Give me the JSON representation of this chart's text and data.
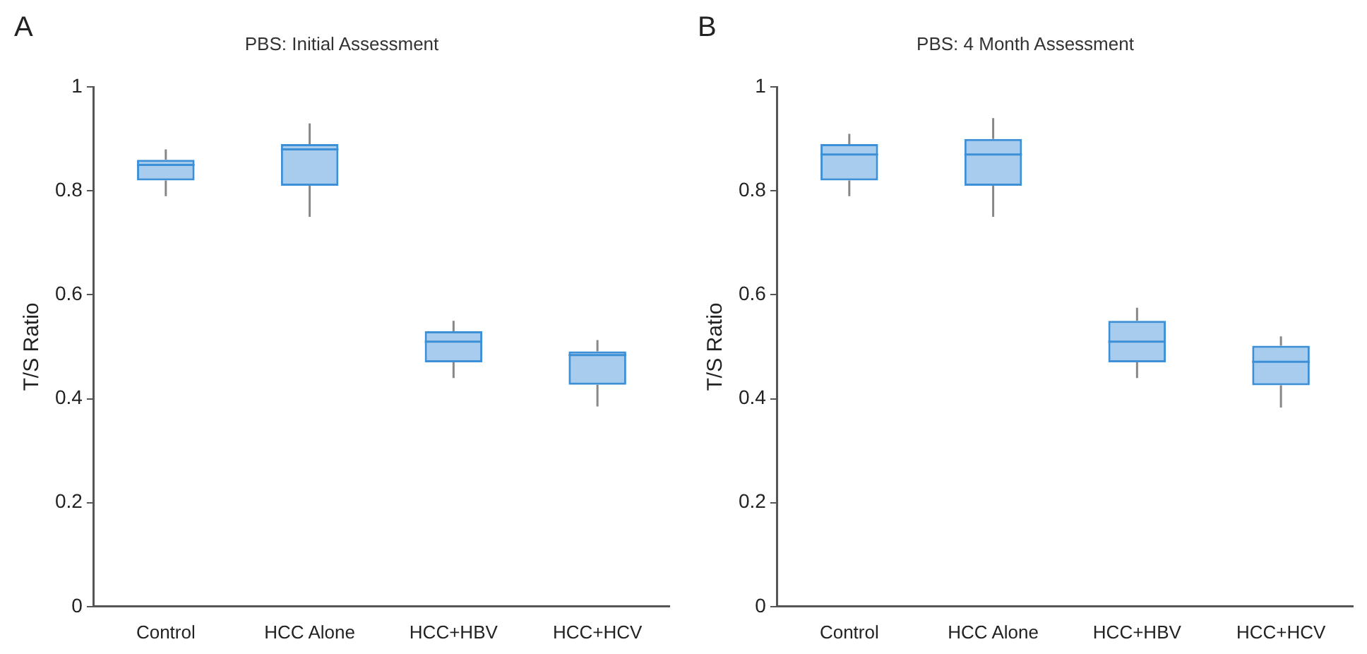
{
  "chart_data": [
    {
      "type": "box",
      "title": "PBS: Initial Assessment",
      "ylabel": "T/S Ratio",
      "annotations": [
        "A"
      ],
      "categories": [
        "Control",
        "HCC Alone",
        "HCC+HBV",
        "HCC+HCV"
      ],
      "color": "#3d8fd6",
      "ylim": [
        0,
        1
      ],
      "yticks": [
        0,
        0.2,
        0.4,
        0.6,
        0.8,
        1
      ],
      "boxes": [
        {
          "low": 0.79,
          "q1": 0.82,
          "median": 0.85,
          "q3": 0.86,
          "high": 0.88
        },
        {
          "low": 0.75,
          "q1": 0.81,
          "median": 0.88,
          "q3": 0.89,
          "high": 0.93
        },
        {
          "low": 0.44,
          "q1": 0.47,
          "median": 0.51,
          "q3": 0.53,
          "high": 0.55
        },
        {
          "low": 0.385,
          "q1": 0.427,
          "median": 0.484,
          "q3": 0.491,
          "high": 0.513
        }
      ]
    },
    {
      "type": "box",
      "title": "PBS: 4 Month Assessment",
      "ylabel": "T/S Ratio",
      "annotations": [
        "B"
      ],
      "categories": [
        "Control",
        "HCC Alone",
        "HCC+HBV",
        "HCC+HCV"
      ],
      "color": "#3d8fd6",
      "ylim": [
        0,
        1
      ],
      "yticks": [
        0,
        0.2,
        0.4,
        0.6,
        0.8,
        1
      ],
      "boxes": [
        {
          "low": 0.79,
          "q1": 0.82,
          "median": 0.87,
          "q3": 0.89,
          "high": 0.91
        },
        {
          "low": 0.75,
          "q1": 0.81,
          "median": 0.87,
          "q3": 0.9,
          "high": 0.94
        },
        {
          "low": 0.44,
          "q1": 0.47,
          "median": 0.51,
          "q3": 0.55,
          "high": 0.575
        },
        {
          "low": 0.383,
          "q1": 0.426,
          "median": 0.471,
          "q3": 0.502,
          "high": 0.52
        }
      ]
    }
  ]
}
